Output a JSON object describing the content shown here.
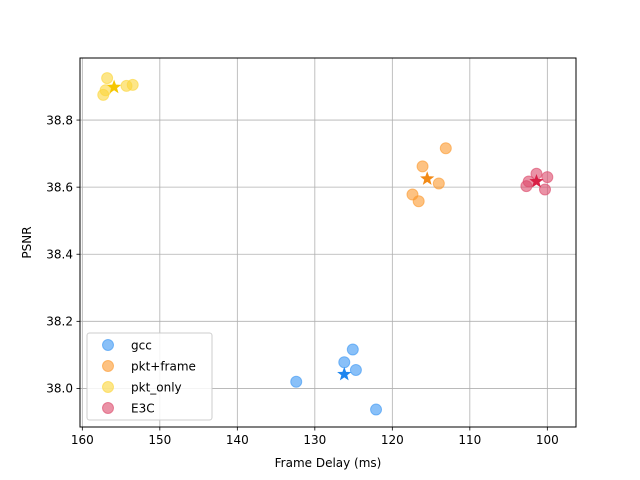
{
  "chart_data": {
    "type": "scatter",
    "title": "",
    "xlabel": "Frame Delay (ms)",
    "ylabel": "PSNR",
    "xlim": [
      160.3,
      96.3
    ],
    "ylim": [
      37.885,
      38.985
    ],
    "x_inverted": true,
    "xticks": [
      160,
      150,
      140,
      130,
      120,
      110,
      100
    ],
    "yticks": [
      38.0,
      38.2,
      38.4,
      38.6,
      38.8
    ],
    "xtick_labels": [
      "160",
      "150",
      "140",
      "130",
      "120",
      "110",
      "100"
    ],
    "ytick_labels": [
      "38.0",
      "38.2",
      "38.4",
      "38.6",
      "38.8"
    ],
    "grid": true,
    "legend_position": "lower-left",
    "series": [
      {
        "name": "gcc",
        "color": "#3b96f3",
        "mean_color": "#1e86ef",
        "points": [
          {
            "x": 132.4,
            "y": 38.02
          },
          {
            "x": 126.2,
            "y": 38.078
          },
          {
            "x": 125.1,
            "y": 38.116
          },
          {
            "x": 124.7,
            "y": 38.055
          },
          {
            "x": 122.1,
            "y": 37.937
          }
        ],
        "mean": {
          "x": 126.2,
          "y": 38.042
        }
      },
      {
        "name": "pkt+frame",
        "color": "#fb9a2f",
        "mean_color": "#f28a16",
        "points": [
          {
            "x": 117.4,
            "y": 38.578
          },
          {
            "x": 116.6,
            "y": 38.558
          },
          {
            "x": 116.1,
            "y": 38.662
          },
          {
            "x": 114.0,
            "y": 38.611
          },
          {
            "x": 113.1,
            "y": 38.716
          }
        ],
        "mean": {
          "x": 115.5,
          "y": 38.625
        }
      },
      {
        "name": "pkt_only",
        "color": "#fbd53a",
        "mean_color": "#f5c600",
        "points": [
          {
            "x": 157.3,
            "y": 38.875
          },
          {
            "x": 157.0,
            "y": 38.889
          },
          {
            "x": 156.8,
            "y": 38.925
          },
          {
            "x": 154.3,
            "y": 38.902
          },
          {
            "x": 153.5,
            "y": 38.905
          }
        ],
        "mean": {
          "x": 155.9,
          "y": 38.898
        }
      },
      {
        "name": "E3C",
        "color": "#dc4a6a",
        "mean_color": "#d81f45",
        "points": [
          {
            "x": 102.7,
            "y": 38.603
          },
          {
            "x": 102.4,
            "y": 38.617
          },
          {
            "x": 101.4,
            "y": 38.64
          },
          {
            "x": 100.3,
            "y": 38.593
          },
          {
            "x": 100.0,
            "y": 38.63
          }
        ],
        "mean": {
          "x": 101.4,
          "y": 38.617
        }
      }
    ]
  }
}
